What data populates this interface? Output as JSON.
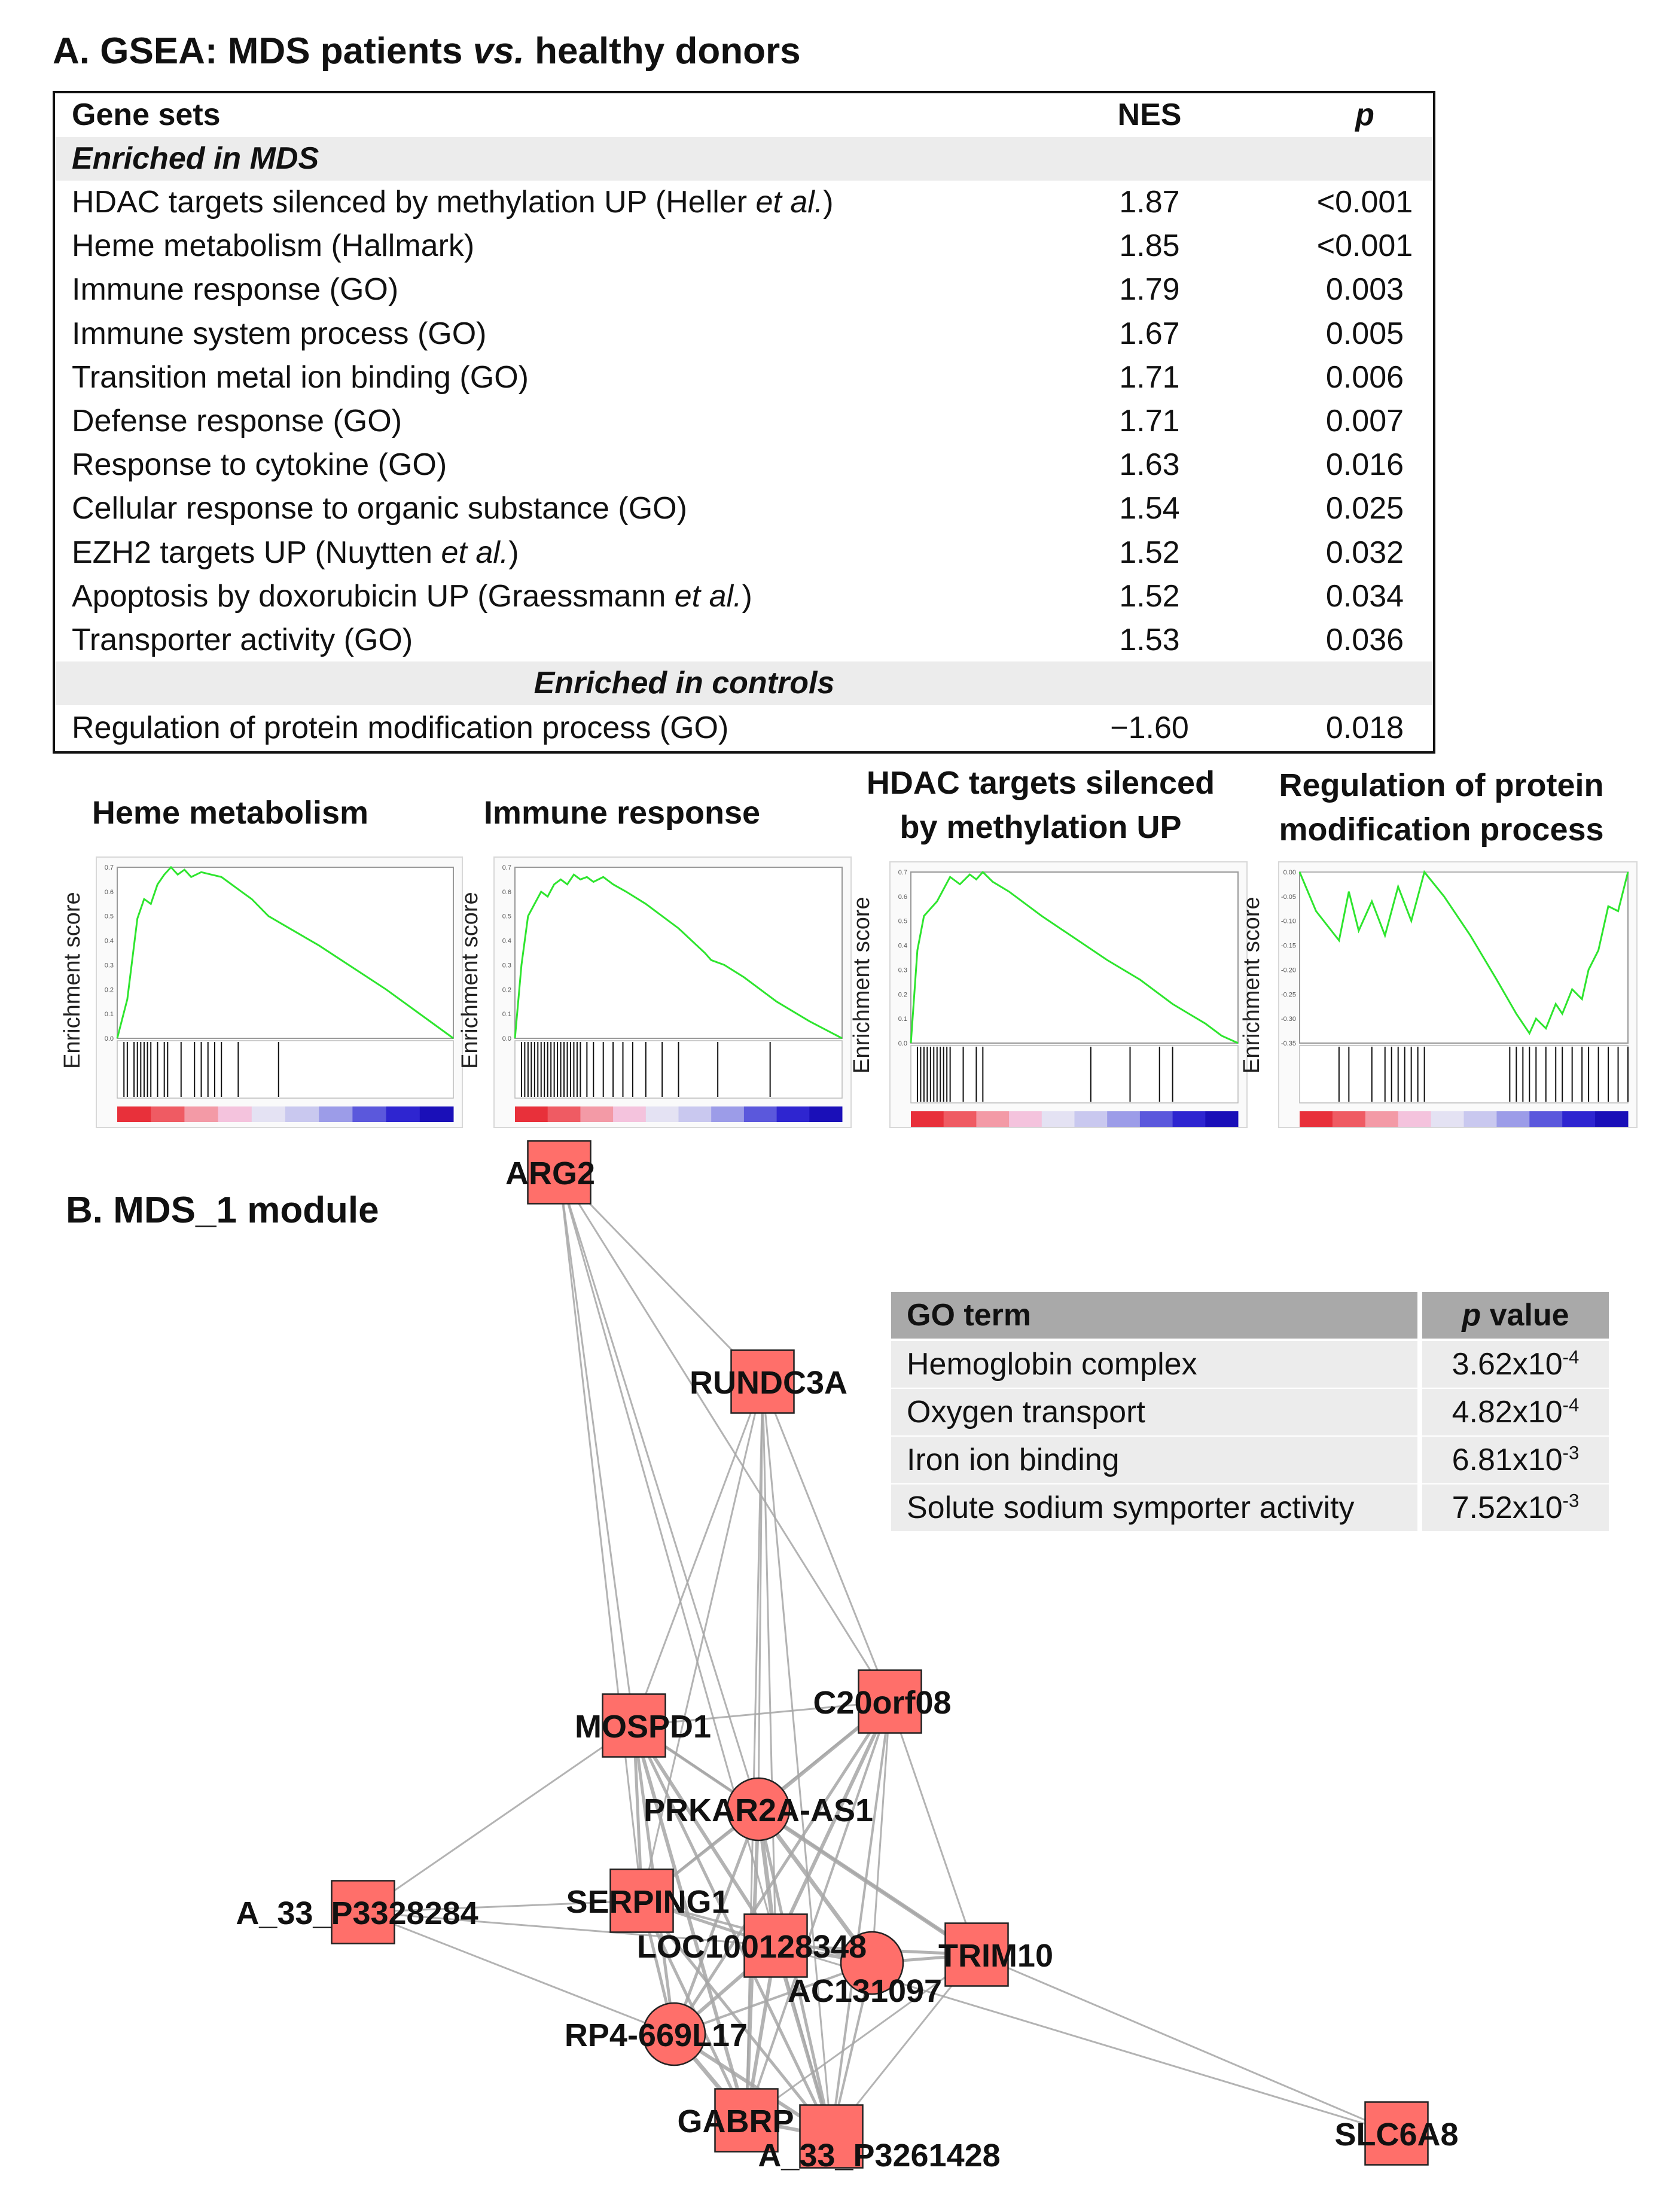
{
  "section_a": {
    "title_prefix": "A. GSEA: MDS patients ",
    "title_em": "vs.",
    "title_suffix": " healthy donors"
  },
  "gsea_table": {
    "headers": {
      "gene_sets": "Gene sets",
      "nes": "NES",
      "p": "p"
    },
    "group1_label": "Enriched in MDS",
    "group2_label": "Enriched in controls",
    "rows": [
      {
        "name": "HDAC targets silenced by methylation UP (Heller ",
        "name_em": "et al.",
        "name_tail": ")",
        "nes": "1.87",
        "p": "<0.001"
      },
      {
        "name": "Heme metabolism (Hallmark)",
        "name_em": "",
        "name_tail": "",
        "nes": "1.85",
        "p": "<0.001"
      },
      {
        "name": "Immune response (GO)",
        "name_em": "",
        "name_tail": "",
        "nes": "1.79",
        "p": "0.003"
      },
      {
        "name": "Immune system process (GO)",
        "name_em": "",
        "name_tail": "",
        "nes": "1.67",
        "p": "0.005"
      },
      {
        "name": "Transition metal ion binding (GO)",
        "name_em": "",
        "name_tail": "",
        "nes": "1.71",
        "p": "0.006"
      },
      {
        "name": "Defense response (GO)",
        "name_em": "",
        "name_tail": "",
        "nes": "1.71",
        "p": "0.007"
      },
      {
        "name": "Response to cytokine (GO)",
        "name_em": "",
        "name_tail": "",
        "nes": "1.63",
        "p": "0.016"
      },
      {
        "name": "Cellular response to organic substance (GO)",
        "name_em": "",
        "name_tail": "",
        "nes": "1.54",
        "p": "0.025"
      },
      {
        "name": "EZH2 targets UP (Nuytten ",
        "name_em": "et al.",
        "name_tail": ")",
        "nes": "1.52",
        "p": "0.032"
      },
      {
        "name": "Apoptosis by doxorubicin UP (Graessmann ",
        "name_em": "et al.",
        "name_tail": ")",
        "nes": "1.52",
        "p": "0.034"
      },
      {
        "name": "Transporter activity (GO)",
        "name_em": "",
        "name_tail": "",
        "nes": "1.53",
        "p": "0.036"
      }
    ],
    "control_row": {
      "name": "Regulation of protein modification process (GO)",
      "nes": "−1.60",
      "p": "0.018"
    }
  },
  "gsea_plots": {
    "ylabel": "Enrichment score",
    "panels": [
      {
        "title_line1": "Heme metabolism",
        "title_line2": ""
      },
      {
        "title_line1": "Immune response",
        "title_line2": ""
      },
      {
        "title_line1": "HDAC targets silenced",
        "title_line2": "by methylation UP"
      },
      {
        "title_line1": "Regulation of protein",
        "title_line2": "modification process"
      }
    ]
  },
  "chart_data": [
    {
      "type": "line",
      "title": "Heme metabolism",
      "ylabel": "Enrichment score",
      "ylim": [
        0,
        0.7
      ],
      "yticks": [
        "0.0",
        "0.1",
        "0.2",
        "0.3",
        "0.4",
        "0.5",
        "0.6",
        "0.7"
      ],
      "x": [
        0,
        3,
        6,
        8,
        10,
        12,
        14,
        16,
        18,
        20,
        22,
        25,
        28,
        31,
        34,
        37,
        40,
        45,
        50,
        60,
        70,
        80,
        90,
        100
      ],
      "y": [
        0.0,
        0.16,
        0.49,
        0.57,
        0.55,
        0.63,
        0.67,
        0.7,
        0.67,
        0.69,
        0.66,
        0.68,
        0.67,
        0.66,
        0.63,
        0.6,
        0.57,
        0.5,
        0.46,
        0.38,
        0.29,
        0.2,
        0.1,
        0.0
      ],
      "hits": [
        2,
        3,
        5,
        6,
        7,
        8,
        9,
        10,
        12,
        14,
        15,
        19,
        23,
        25,
        27,
        29,
        31,
        36,
        48
      ]
    },
    {
      "type": "line",
      "title": "Immune response",
      "ylabel": "Enrichment score",
      "ylim": [
        0,
        0.7
      ],
      "yticks": [
        "0.0",
        "0.1",
        "0.2",
        "0.3",
        "0.4",
        "0.5",
        "0.6",
        "0.7"
      ],
      "x": [
        0,
        2,
        4,
        6,
        8,
        10,
        12,
        14,
        16,
        18,
        20,
        22,
        24,
        27,
        30,
        34,
        40,
        50,
        58,
        60,
        64,
        70,
        80,
        90,
        100
      ],
      "y": [
        0.0,
        0.3,
        0.5,
        0.55,
        0.6,
        0.58,
        0.63,
        0.65,
        0.63,
        0.67,
        0.65,
        0.66,
        0.64,
        0.66,
        0.63,
        0.6,
        0.55,
        0.45,
        0.35,
        0.32,
        0.3,
        0.25,
        0.15,
        0.07,
        0.0
      ],
      "hits": [
        2,
        3,
        4,
        5,
        6,
        7,
        8,
        9,
        10,
        11,
        12,
        13,
        14,
        15,
        16,
        17,
        18,
        19,
        20,
        22,
        24,
        27,
        30,
        33,
        36,
        40,
        45,
        50,
        62,
        78
      ]
    },
    {
      "type": "line",
      "title": "HDAC targets silenced by methylation UP",
      "ylabel": "Enrichment score",
      "ylim": [
        0,
        0.7
      ],
      "yticks": [
        "0.0",
        "0.1",
        "0.2",
        "0.3",
        "0.4",
        "0.5",
        "0.6",
        "0.7"
      ],
      "x": [
        0,
        2,
        4,
        6,
        8,
        10,
        12,
        15,
        18,
        20,
        22,
        25,
        30,
        40,
        50,
        60,
        70,
        80,
        85,
        90,
        95,
        100
      ],
      "y": [
        0.0,
        0.38,
        0.52,
        0.55,
        0.58,
        0.63,
        0.68,
        0.65,
        0.69,
        0.67,
        0.7,
        0.66,
        0.62,
        0.52,
        0.43,
        0.34,
        0.26,
        0.16,
        0.12,
        0.08,
        0.03,
        0.0
      ],
      "hits": [
        2,
        3,
        4,
        5,
        6,
        7,
        8,
        9,
        10,
        11,
        12,
        16,
        20,
        22,
        55,
        67,
        76,
        80
      ]
    },
    {
      "type": "line",
      "title": "Regulation of protein modification process",
      "ylabel": "Enrichment score",
      "ylim": [
        -0.35,
        0.0
      ],
      "yticks": [
        "0.00",
        "-0.05",
        "-0.10",
        "-0.15",
        "-0.20",
        "-0.25",
        "-0.30",
        "-0.35"
      ],
      "x": [
        0,
        5,
        12,
        15,
        18,
        22,
        26,
        30,
        34,
        38,
        44,
        52,
        60,
        66,
        70,
        72,
        75,
        78,
        80,
        83,
        86,
        88,
        91,
        94,
        97,
        100
      ],
      "y": [
        0.0,
        -0.08,
        -0.14,
        -0.04,
        -0.12,
        -0.06,
        -0.13,
        -0.03,
        -0.1,
        0.0,
        -0.05,
        -0.13,
        -0.22,
        -0.29,
        -0.33,
        -0.3,
        -0.32,
        -0.27,
        -0.29,
        -0.24,
        -0.26,
        -0.2,
        -0.16,
        -0.07,
        -0.08,
        0.0
      ],
      "hits": [
        12,
        15,
        22,
        26,
        28,
        30,
        32,
        34,
        36,
        38,
        64,
        66,
        68,
        70,
        72,
        75,
        78,
        80,
        83,
        86,
        88,
        91,
        94,
        97,
        100
      ]
    }
  ],
  "section_b": {
    "title": "B. MDS_1 module"
  },
  "go_table": {
    "headers": {
      "term": "GO term",
      "p": "p value"
    },
    "rows": [
      {
        "term": "Hemoglobin complex",
        "p_base": "3.62x10",
        "p_exp": "-4"
      },
      {
        "term": "Oxygen transport",
        "p_base": "4.82x10",
        "p_exp": "-4"
      },
      {
        "term": "Iron ion binding",
        "p_base": "6.81x10",
        "p_exp": "-3"
      },
      {
        "term": "Solute sodium symporter activity",
        "p_base": "7.52x10",
        "p_exp": "-3"
      }
    ]
  },
  "network": {
    "node_color": "#ff6f6a",
    "nodes": [
      {
        "label": "ARG2"
      },
      {
        "label": "RUNDC3A"
      },
      {
        "label": "MOSPD1"
      },
      {
        "label": "C20orf08"
      },
      {
        "label": "PRKAR2A-AS1"
      },
      {
        "label": "A_33_P3328284"
      },
      {
        "label": "SERPING1"
      },
      {
        "label": "LOC100128348"
      },
      {
        "label": "AC131097"
      },
      {
        "label": "TRIM10"
      },
      {
        "label": "RP4-669L17"
      },
      {
        "label": "GABRP"
      },
      {
        "label": "A_33_P3261428"
      },
      {
        "label": "SLC6A8"
      }
    ]
  }
}
